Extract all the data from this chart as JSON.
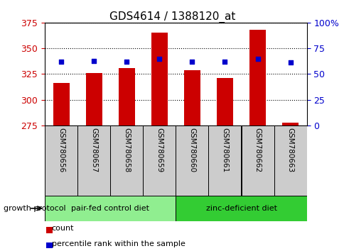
{
  "title": "GDS4614 / 1388120_at",
  "samples": [
    "GSM780656",
    "GSM780657",
    "GSM780658",
    "GSM780659",
    "GSM780660",
    "GSM780661",
    "GSM780662",
    "GSM780663"
  ],
  "counts": [
    316,
    326,
    331,
    365,
    329,
    321,
    368,
    278
  ],
  "percentiles": [
    62,
    63,
    62,
    65,
    62,
    62,
    65,
    61
  ],
  "ylim_left": [
    275,
    375
  ],
  "ylim_right": [
    0,
    100
  ],
  "yticks_left": [
    275,
    300,
    325,
    350,
    375
  ],
  "yticks_right": [
    0,
    25,
    50,
    75,
    100
  ],
  "ytick_labels_right": [
    "0",
    "25",
    "50",
    "75",
    "100%"
  ],
  "bar_color": "#cc0000",
  "dot_color": "#0000cc",
  "bar_bottom": 275,
  "groups": [
    {
      "label": "pair-fed control diet",
      "indices": [
        0,
        1,
        2,
        3
      ],
      "color": "#90ee90"
    },
    {
      "label": "zinc-deficient diet",
      "indices": [
        4,
        5,
        6,
        7
      ],
      "color": "#33cc33"
    }
  ],
  "group_label": "growth protocol",
  "legend_count_label": "count",
  "legend_pct_label": "percentile rank within the sample",
  "tick_label_color_left": "#cc0000",
  "tick_label_color_right": "#0000cc",
  "xlabel_area_bg": "#cccccc",
  "bar_width": 0.5
}
